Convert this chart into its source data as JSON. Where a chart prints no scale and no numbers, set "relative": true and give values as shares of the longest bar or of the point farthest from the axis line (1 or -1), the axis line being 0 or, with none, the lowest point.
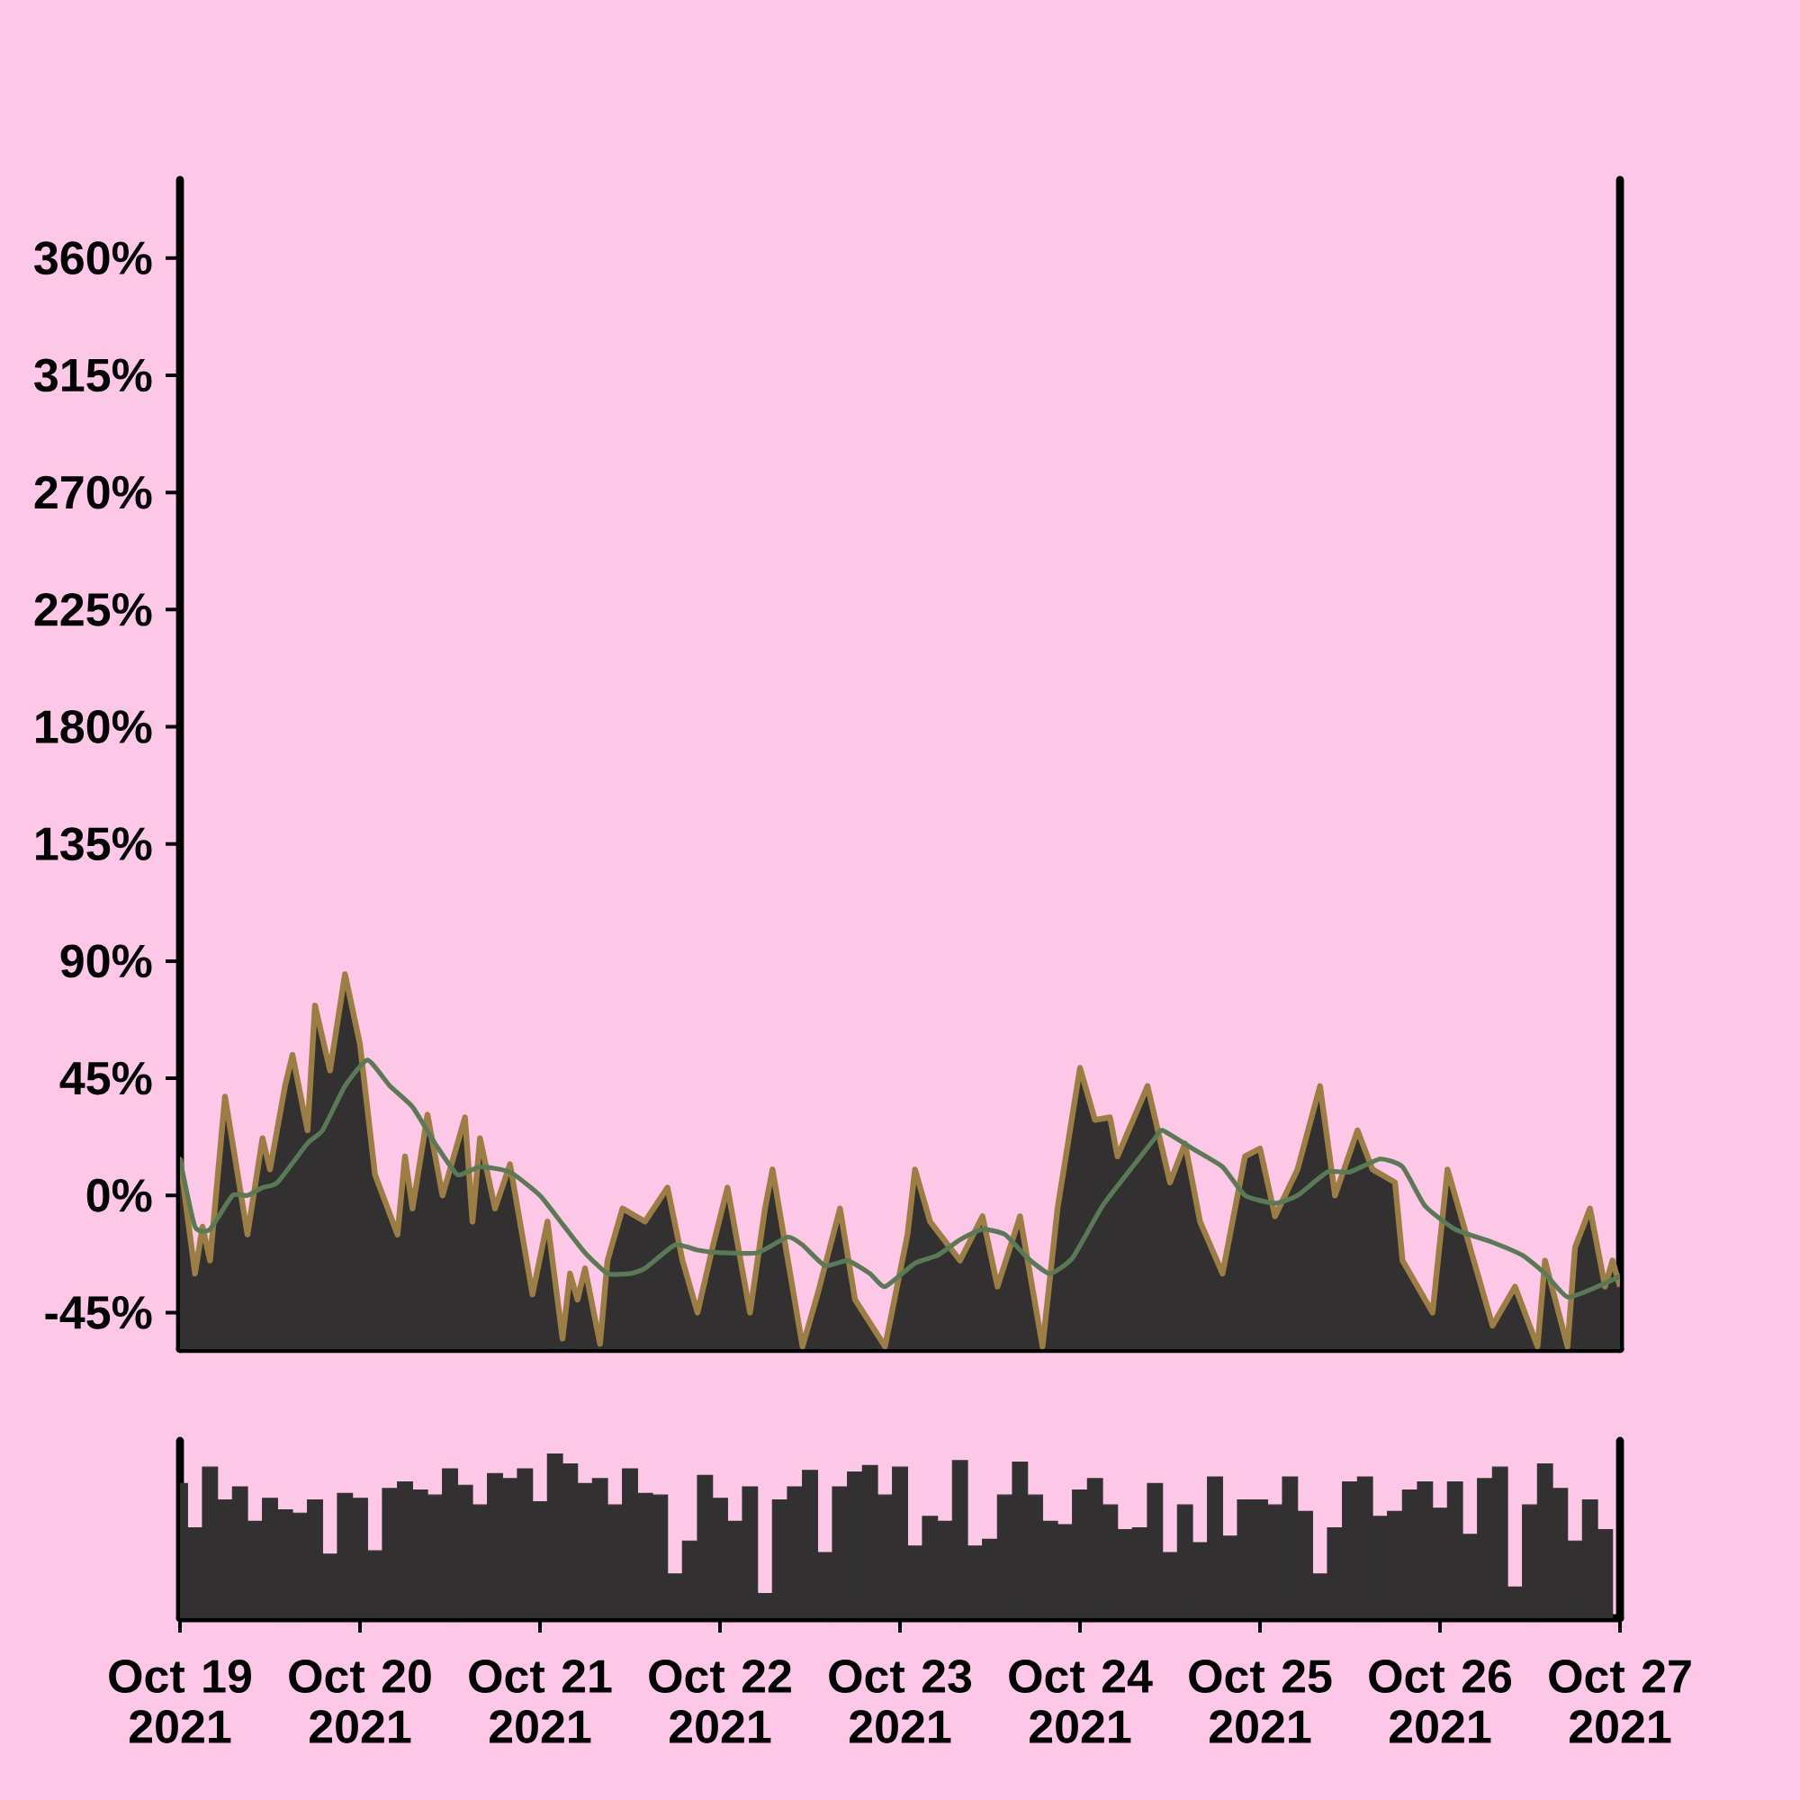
{
  "chart_data": [
    {
      "type": "area",
      "xlim": [
        "2021-10-19",
        "2021-10-27"
      ],
      "ylim": [
        -59,
        390
      ],
      "tick_labels": "y",
      "yticks": [
        {
          "value": -45,
          "label": "-45%"
        },
        {
          "value": 0,
          "label": "0%"
        },
        {
          "value": 45,
          "label": "45%"
        },
        {
          "value": 90,
          "label": "90%"
        },
        {
          "value": 135,
          "label": "135%"
        },
        {
          "value": 180,
          "label": "180%"
        },
        {
          "value": 225,
          "label": "225%"
        },
        {
          "value": 270,
          "label": "270%"
        },
        {
          "value": 315,
          "label": "315%"
        },
        {
          "value": 360,
          "label": "360%"
        }
      ],
      "series": [
        {
          "type": "area",
          "color": "#333031",
          "x": [
            "2021-10-19T00:00",
            "2021-10-19T02:00",
            "2021-10-19T03:00",
            "2021-10-19T04:00",
            "2021-10-19T06:00",
            "2021-10-19T09:00",
            "2021-10-19T11:00",
            "2021-10-19T12:00",
            "2021-10-19T14:00",
            "2021-10-19T15:00",
            "2021-10-19T17:00",
            "2021-10-19T18:00",
            "2021-10-19T20:00",
            "2021-10-19T22:00",
            "2021-10-20T00:00",
            "2021-10-20T02:00",
            "2021-10-20T05:00",
            "2021-10-20T06:00",
            "2021-10-20T07:00",
            "2021-10-20T09:00",
            "2021-10-20T11:00",
            "2021-10-20T14:00",
            "2021-10-20T15:00",
            "2021-10-20T16:00",
            "2021-10-20T18:00",
            "2021-10-20T20:00",
            "2021-10-20T23:00",
            "2021-10-21T01:00",
            "2021-10-21T03:00",
            "2021-10-21T04:00",
            "2021-10-21T05:00",
            "2021-10-21T06:00",
            "2021-10-21T08:00",
            "2021-10-21T09:00",
            "2021-10-21T11:00",
            "2021-10-21T14:00",
            "2021-10-21T17:00",
            "2021-10-21T19:00",
            "2021-10-21T21:00",
            "2021-10-21T23:00",
            "2021-10-22T01:00",
            "2021-10-22T04:00",
            "2021-10-22T06:00",
            "2021-10-22T07:00",
            "2021-10-22T11:00",
            "2021-10-22T13:00",
            "2021-10-22T16:00",
            "2021-10-22T18:00",
            "2021-10-22T22:00",
            "2021-10-23T01:00",
            "2021-10-23T02:00",
            "2021-10-23T04:00",
            "2021-10-23T08:00",
            "2021-10-23T11:00",
            "2021-10-23T13:00",
            "2021-10-23T16:00",
            "2021-10-23T19:00",
            "2021-10-23T21:00",
            "2021-10-24T00:00",
            "2021-10-24T02:00",
            "2021-10-24T04:00",
            "2021-10-24T05:00",
            "2021-10-24T09:00",
            "2021-10-24T12:00",
            "2021-10-24T14:00",
            "2021-10-24T16:00",
            "2021-10-24T19:00",
            "2021-10-24T22:00",
            "2021-10-25T00:00",
            "2021-10-25T02:00",
            "2021-10-25T05:00",
            "2021-10-25T08:00",
            "2021-10-25T10:00",
            "2021-10-25T13:00",
            "2021-10-25T15:00",
            "2021-10-25T18:00",
            "2021-10-25T19:00",
            "2021-10-25T23:00",
            "2021-10-26T01:00",
            "2021-10-26T04:00",
            "2021-10-26T07:00",
            "2021-10-26T10:00",
            "2021-10-26T13:00",
            "2021-10-26T14:00",
            "2021-10-26T17:00",
            "2021-10-26T18:00",
            "2021-10-26T20:00",
            "2021-10-26T22:00",
            "2021-10-26T23:00",
            "2021-10-27T00:00"
          ],
          "values": [
            14,
            -30,
            -12,
            -25,
            38,
            -15,
            22,
            10,
            42,
            54,
            25,
            73,
            48,
            85,
            58,
            8,
            -15,
            15,
            -5,
            31,
            0,
            30,
            -10,
            22,
            -5,
            12,
            -38,
            -10,
            -55,
            -30,
            -40,
            -28,
            -57,
            -25,
            -5,
            -10,
            3,
            -25,
            -45,
            -20,
            3,
            -45,
            -5,
            10,
            -58,
            -38,
            -5,
            -40,
            -58,
            -15,
            10,
            -10,
            -25,
            -8,
            -35,
            -8,
            -58,
            -5,
            49,
            29,
            30,
            15,
            42,
            5,
            20,
            -10,
            -30,
            15,
            18,
            -8,
            10,
            42,
            0,
            25,
            10,
            5,
            -25,
            -45,
            10,
            -20,
            -50,
            -35,
            -58,
            -25,
            -58,
            -20,
            -5,
            -35,
            -25,
            -35
          ]
        },
        {
          "type": "line",
          "color": "#5a7a55",
          "x": [
            "2021-10-19T00:00",
            "2021-10-19T02:00",
            "2021-10-19T04:00",
            "2021-10-19T07:00",
            "2021-10-19T09:00",
            "2021-10-19T11:00",
            "2021-10-19T13:00",
            "2021-10-19T17:00",
            "2021-10-19T19:00",
            "2021-10-19T22:00",
            "2021-10-20T01:00",
            "2021-10-20T04:00",
            "2021-10-20T07:00",
            "2021-10-20T10:00",
            "2021-10-20T13:00",
            "2021-10-20T16:00",
            "2021-10-20T20:00",
            "2021-10-21T00:00",
            "2021-10-21T03:00",
            "2021-10-21T06:00",
            "2021-10-21T09:00",
            "2021-10-21T12:00",
            "2021-10-21T14:00",
            "2021-10-21T18:00",
            "2021-10-21T21:00",
            "2021-10-22T00:00",
            "2021-10-22T05:00",
            "2021-10-22T09:00",
            "2021-10-22T11:00",
            "2021-10-22T14:00",
            "2021-10-22T17:00",
            "2021-10-22T20:00",
            "2021-10-22T22:00",
            "2021-10-23T02:00",
            "2021-10-23T05:00",
            "2021-10-23T08:00",
            "2021-10-23T11:00",
            "2021-10-23T14:00",
            "2021-10-23T17:00",
            "2021-10-23T20:00",
            "2021-10-23T23:00",
            "2021-10-24T03:00",
            "2021-10-24T07:00",
            "2021-10-24T10:00",
            "2021-10-24T11:00",
            "2021-10-24T15:00",
            "2021-10-24T19:00",
            "2021-10-24T22:00",
            "2021-10-25T02:00",
            "2021-10-25T05:00",
            "2021-10-25T09:00",
            "2021-10-25T12:00",
            "2021-10-25T16:00",
            "2021-10-25T19:00",
            "2021-10-25T22:00",
            "2021-10-26T02:00",
            "2021-10-26T07:00",
            "2021-10-26T11:00",
            "2021-10-26T14:00",
            "2021-10-26T17:00",
            "2021-10-26T21:00",
            "2021-10-27T00:00"
          ],
          "values": [
            14,
            -12,
            -13,
            0,
            0,
            3,
            5,
            20,
            25,
            42,
            52,
            42,
            34,
            20,
            8,
            11,
            9,
            0,
            -11,
            -22,
            -30,
            -30,
            -28,
            -19,
            -21,
            -22,
            -22,
            -16,
            -19,
            -27,
            -25,
            -30,
            -35,
            -26,
            -23,
            -17,
            -13,
            -15,
            -24,
            -30,
            -24,
            -4,
            11,
            22,
            25,
            18,
            11,
            0,
            -3,
            0,
            9,
            9,
            14,
            11,
            -4,
            -13,
            -18,
            -23,
            -30,
            -39,
            -35,
            -31
          ]
        }
      ]
    },
    {
      "type": "bar",
      "relative": true,
      "color": "#333031",
      "xlim": [
        "2021-10-19",
        "2021-10-27"
      ],
      "xticks": [
        {
          "value": "2021-10-19",
          "label": "Oct 19 2021"
        },
        {
          "value": "2021-10-20",
          "label": "Oct 20 2021"
        },
        {
          "value": "2021-10-21",
          "label": "Oct 21 2021"
        },
        {
          "value": "2021-10-22",
          "label": "Oct 22 2021"
        },
        {
          "value": "2021-10-23",
          "label": "Oct 23 2021"
        },
        {
          "value": "2021-10-24",
          "label": "Oct 24 2021"
        },
        {
          "value": "2021-10-25",
          "label": "Oct 25 2021"
        },
        {
          "value": "2021-10-26",
          "label": "Oct 26 2021"
        },
        {
          "value": "2021-10-27",
          "label": "Oct 27 2021"
        }
      ],
      "x": [
        "2021-10-19T00:00",
        "2021-10-19T02:00",
        "2021-10-19T04:00",
        "2021-10-19T06:00",
        "2021-10-19T08:00",
        "2021-10-19T10:00",
        "2021-10-19T12:00",
        "2021-10-19T14:00",
        "2021-10-19T16:00",
        "2021-10-19T18:00",
        "2021-10-19T20:00",
        "2021-10-19T22:00",
        "2021-10-20T00:00",
        "2021-10-20T02:00",
        "2021-10-20T04:00",
        "2021-10-20T06:00",
        "2021-10-20T08:00",
        "2021-10-20T10:00",
        "2021-10-20T12:00",
        "2021-10-20T14:00",
        "2021-10-20T16:00",
        "2021-10-20T18:00",
        "2021-10-20T20:00",
        "2021-10-20T22:00",
        "2021-10-21T00:00",
        "2021-10-21T02:00",
        "2021-10-21T04:00",
        "2021-10-21T06:00",
        "2021-10-21T08:00",
        "2021-10-21T10:00",
        "2021-10-21T12:00",
        "2021-10-21T14:00",
        "2021-10-21T16:00",
        "2021-10-21T18:00",
        "2021-10-21T20:00",
        "2021-10-21T22:00",
        "2021-10-22T00:00",
        "2021-10-22T02:00",
        "2021-10-22T04:00",
        "2021-10-22T06:00",
        "2021-10-22T08:00",
        "2021-10-22T10:00",
        "2021-10-22T12:00",
        "2021-10-22T14:00",
        "2021-10-22T16:00",
        "2021-10-22T18:00",
        "2021-10-22T20:00",
        "2021-10-22T22:00",
        "2021-10-23T00:00",
        "2021-10-23T02:00",
        "2021-10-23T04:00",
        "2021-10-23T06:00",
        "2021-10-23T08:00",
        "2021-10-23T10:00",
        "2021-10-23T12:00",
        "2021-10-23T14:00",
        "2021-10-23T16:00",
        "2021-10-23T18:00",
        "2021-10-23T20:00",
        "2021-10-23T22:00",
        "2021-10-24T00:00",
        "2021-10-24T02:00",
        "2021-10-24T04:00",
        "2021-10-24T06:00",
        "2021-10-24T08:00",
        "2021-10-24T10:00",
        "2021-10-24T12:00",
        "2021-10-24T14:00",
        "2021-10-24T16:00",
        "2021-10-24T18:00",
        "2021-10-24T20:00",
        "2021-10-24T22:00",
        "2021-10-25T00:00",
        "2021-10-25T02:00",
        "2021-10-25T04:00",
        "2021-10-25T06:00",
        "2021-10-25T08:00",
        "2021-10-25T10:00",
        "2021-10-25T12:00",
        "2021-10-25T14:00",
        "2021-10-25T16:00",
        "2021-10-25T18:00",
        "2021-10-25T20:00",
        "2021-10-25T22:00",
        "2021-10-26T00:00",
        "2021-10-26T02:00",
        "2021-10-26T04:00",
        "2021-10-26T06:00",
        "2021-10-26T08:00",
        "2021-10-26T10:00",
        "2021-10-26T12:00",
        "2021-10-26T14:00",
        "2021-10-26T16:00",
        "2021-10-26T18:00",
        "2021-10-26T20:00",
        "2021-10-26T22:00"
      ],
      "values": [
        0.82,
        0.55,
        0.92,
        0.72,
        0.8,
        0.59,
        0.73,
        0.66,
        0.64,
        0.72,
        0.39,
        0.76,
        0.73,
        0.41,
        0.79,
        0.83,
        0.78,
        0.75,
        0.91,
        0.81,
        0.69,
        0.88,
        0.85,
        0.91,
        0.71,
        1,
        0.94,
        0.82,
        0.85,
        0.69,
        0.91,
        0.76,
        0.75,
        0.27,
        0.47,
        0.87,
        0.73,
        0.59,
        0.8,
        0.15,
        0.72,
        0.8,
        0.9,
        0.4,
        0.8,
        0.89,
        0.93,
        0.75,
        0.92,
        0.44,
        0.62,
        0.59,
        0.96,
        0.44,
        0.48,
        0.75,
        0.95,
        0.75,
        0.59,
        0.57,
        0.78,
        0.85,
        0.69,
        0.54,
        0.55,
        0.82,
        0.4,
        0.69,
        0.46,
        0.86,
        0.5,
        0.72,
        0.72,
        0.69,
        0.86,
        0.65,
        0.27,
        0.55,
        0.83,
        0.86,
        0.62,
        0.65,
        0.78,
        0.83,
        0.67,
        0.83,
        0.51,
        0.85,
        0.92,
        0.19,
        0.69,
        0.94,
        0.79,
        0.47,
        0.72,
        0.54
      ]
    }
  ]
}
